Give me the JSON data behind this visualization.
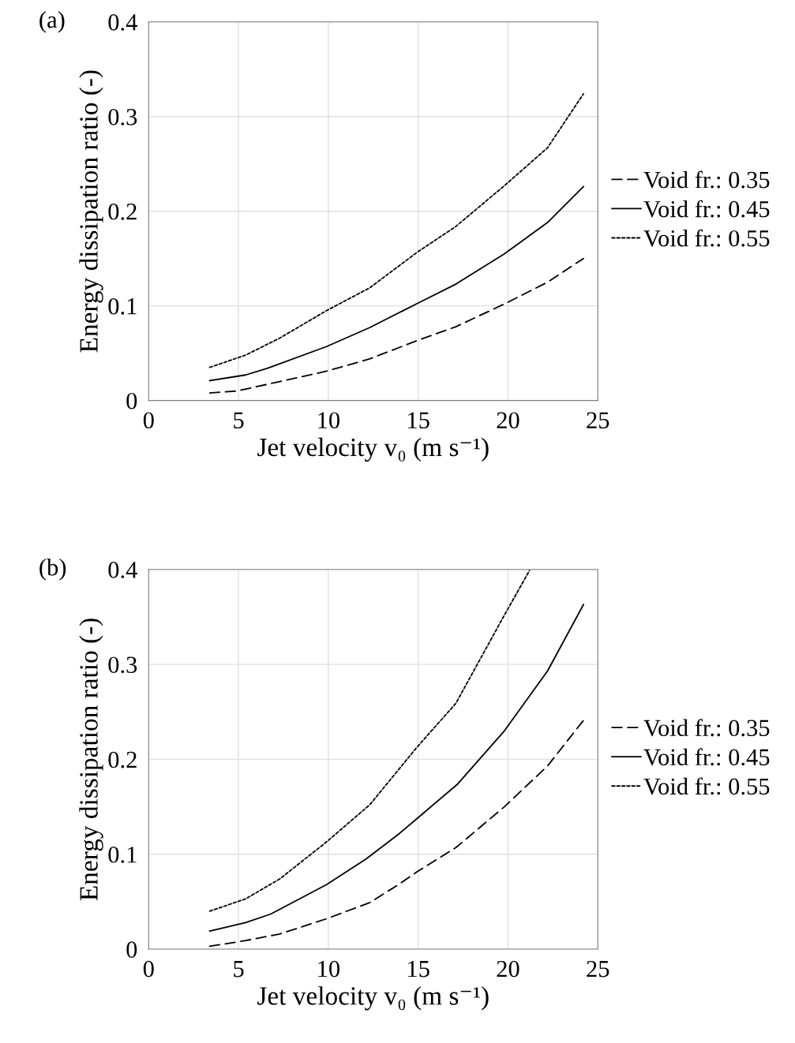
{
  "chart_data": [
    {
      "type": "line",
      "title": "(a)",
      "xlabel": "Jet velocity v₀ (m s⁻¹)",
      "ylabel": "Energy dissipation ratio (-)",
      "xlim": [
        0,
        25
      ],
      "xticks": [
        0,
        5,
        10,
        15,
        20,
        25
      ],
      "ylim": [
        0,
        0.4
      ],
      "yticks": [
        0,
        0.1,
        0.2,
        0.3,
        0.4
      ],
      "grid": true,
      "legend": "right",
      "marker": "none",
      "series": [
        {
          "name": "Void fr.: 0.35",
          "color": "#000000",
          "line_style": "dashed",
          "x": [
            3.4,
            4.9,
            7.3,
            9.9,
            12.3,
            14.9,
            17.1,
            19.8,
            22.2,
            24.2
          ],
          "values": [
            0.008,
            0.01,
            0.02,
            0.031,
            0.044,
            0.063,
            0.078,
            0.102,
            0.125,
            0.15
          ]
        },
        {
          "name": "Void fr.: 0.45",
          "color": "#000000",
          "line_style": "solid",
          "x": [
            3.4,
            5.4,
            6.6,
            9.9,
            12.3,
            14.9,
            17.1,
            19.8,
            22.2,
            24.2
          ],
          "values": [
            0.021,
            0.027,
            0.034,
            0.057,
            0.077,
            0.102,
            0.123,
            0.155,
            0.188,
            0.226
          ]
        },
        {
          "name": "Void fr.: 0.55",
          "color": "#000000",
          "line_style": "dotted",
          "x": [
            3.4,
            5.4,
            7.3,
            9.9,
            12.3,
            14.9,
            17.1,
            19.8,
            22.2,
            24.2
          ],
          "values": [
            0.035,
            0.048,
            0.066,
            0.095,
            0.119,
            0.156,
            0.184,
            0.227,
            0.267,
            0.324
          ]
        }
      ]
    },
    {
      "type": "line",
      "title": "(b)",
      "xlabel": "Jet velocity v₀ (m s⁻¹)",
      "ylabel": "Energy dissipation ratio (-)",
      "xlim": [
        0,
        25
      ],
      "xticks": [
        0,
        5,
        10,
        15,
        20,
        25
      ],
      "ylim": [
        0,
        0.4
      ],
      "yticks": [
        0,
        0.1,
        0.2,
        0.3,
        0.4
      ],
      "grid": true,
      "legend": "right",
      "marker": "none",
      "series": [
        {
          "name": "Void fr.: 0.35",
          "color": "#000000",
          "line_style": "dashed",
          "x": [
            3.4,
            5.4,
            7.3,
            9.9,
            12.3,
            13.9,
            14.9,
            17.1,
            19.8,
            22.2,
            24.2
          ],
          "values": [
            0.003,
            0.009,
            0.016,
            0.032,
            0.049,
            0.068,
            0.081,
            0.107,
            0.15,
            0.193,
            0.241
          ]
        },
        {
          "name": "Void fr.: 0.45",
          "color": "#000000",
          "line_style": "solid",
          "x": [
            3.4,
            5.4,
            6.8,
            9.9,
            12.1,
            13.9,
            14.9,
            17.2,
            19.8,
            22.2,
            24.2
          ],
          "values": [
            0.019,
            0.028,
            0.037,
            0.068,
            0.095,
            0.121,
            0.137,
            0.174,
            0.23,
            0.293,
            0.363
          ]
        },
        {
          "name": "Void fr.: 0.55",
          "color": "#000000",
          "line_style": "dotted",
          "x": [
            3.4,
            5.4,
            7.3,
            9.9,
            12.3,
            14.9,
            17.1,
            19.8,
            21.2
          ],
          "values": [
            0.04,
            0.053,
            0.074,
            0.113,
            0.152,
            0.212,
            0.259,
            0.352,
            0.399
          ]
        }
      ]
    }
  ]
}
